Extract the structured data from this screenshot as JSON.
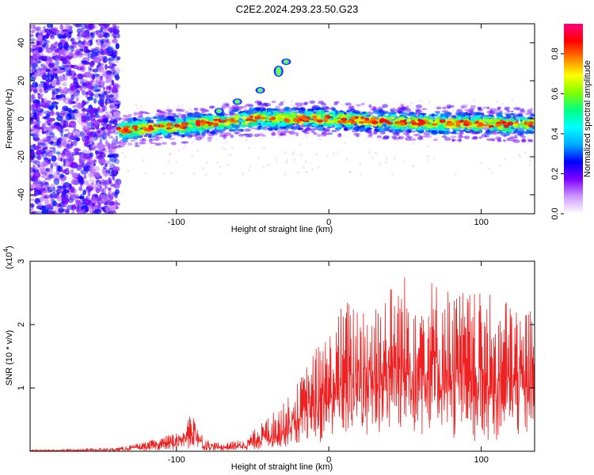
{
  "title": "C2E2.2024.293.23.50.G23",
  "chart_data": [
    {
      "type": "heatmap",
      "xlabel": "Height of straight line (km)",
      "ylabel": "Frequency (Hz)",
      "xlim": [
        -196,
        135
      ],
      "ylim": [
        -50,
        50
      ],
      "xticks": [
        -100,
        0,
        100
      ],
      "yticks": [
        -40,
        -20,
        0,
        20,
        40
      ],
      "colorbar": {
        "label": "Normalized spectral amplitude",
        "range": [
          0,
          0.95
        ],
        "ticks": [
          "0.0",
          "0.2",
          "0.4",
          "0.6",
          "0.8"
        ],
        "colors": [
          "#ffffff",
          "#cc99ff",
          "#7f00ff",
          "#0000ff",
          "#00aaff",
          "#00ffff",
          "#00ff80",
          "#80ff00",
          "#ffff00",
          "#ff8000",
          "#ff0000",
          "#ff0080"
        ]
      },
      "features": [
        {
          "name": "noise-region",
          "x": [
            -196,
            -138
          ],
          "y": [
            -50,
            50
          ],
          "amplitude": 0.15
        },
        {
          "name": "main-band",
          "x": [
            -138,
            135
          ],
          "y_center_at": [
            [
              -138,
              -6
            ],
            [
              -100,
              -4
            ],
            [
              -50,
              0
            ],
            [
              0,
              0
            ],
            [
              50,
              -2
            ],
            [
              135,
              -3
            ]
          ],
          "amplitude": 0.6
        },
        {
          "name": "rising-streak",
          "points": [
            [
              -72,
              4
            ],
            [
              -60,
              9
            ],
            [
              -45,
              15
            ],
            [
              -33,
              25
            ],
            [
              -28,
              30
            ]
          ],
          "amplitude": 0.55
        }
      ]
    },
    {
      "type": "line",
      "xlabel": "Height of straight line (km)",
      "ylabel": "SNR (10 * v/v)",
      "ylabel_scale": "(x10",
      "ylabel_exponent": "4",
      "xlim": [
        -196,
        135
      ],
      "ylim": [
        0,
        3
      ],
      "xticks": [
        -100,
        0,
        100
      ],
      "yticks": [
        1,
        2,
        3
      ],
      "series": [
        {
          "color": "#ee2222",
          "envelope": [
            {
              "x": -196,
              "y": 0.02
            },
            {
              "x": -140,
              "y": 0.05
            },
            {
              "x": -120,
              "y": 0.15
            },
            {
              "x": -100,
              "y": 0.3
            },
            {
              "x": -88,
              "y": 0.65
            },
            {
              "x": -82,
              "y": 0.2
            },
            {
              "x": -70,
              "y": 0.12
            },
            {
              "x": -55,
              "y": 0.2
            },
            {
              "x": -40,
              "y": 0.55
            },
            {
              "x": -30,
              "y": 0.75
            },
            {
              "x": -20,
              "y": 1.1
            },
            {
              "x": -10,
              "y": 1.6
            },
            {
              "x": 0,
              "y": 1.9
            },
            {
              "x": 10,
              "y": 2.4
            },
            {
              "x": 30,
              "y": 2.5
            },
            {
              "x": 55,
              "y": 2.9
            },
            {
              "x": 80,
              "y": 2.6
            },
            {
              "x": 100,
              "y": 2.5
            },
            {
              "x": 120,
              "y": 2.4
            },
            {
              "x": 135,
              "y": 2.3
            }
          ]
        }
      ]
    }
  ]
}
